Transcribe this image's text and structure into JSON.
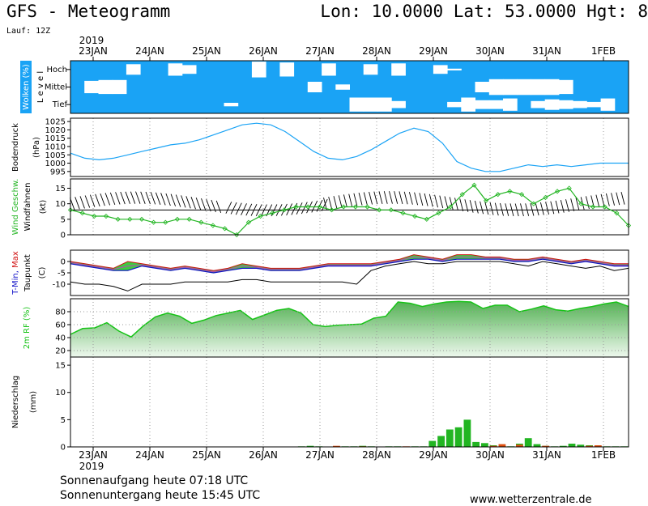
{
  "header": {
    "title": "GFS - Meteogramm",
    "coords": "Lon: 10.0000 Lat: 53.0000 Hgt: 8",
    "run": "Lauf: 12Z"
  },
  "footer": {
    "sunrise": "Sonnenaufgang heute 07:18 UTC",
    "sunset": "Sonnenuntergang heute 15:45 UTC",
    "site": "www.wetterzentrale.de"
  },
  "colors": {
    "cloud": "#1aa3f5",
    "pressure": "#1aa3f5",
    "wind": "#22b522",
    "tmin": "#1010c8",
    "tmax": "#d01010",
    "rh": "#17c317",
    "precip": "#22b522",
    "precip_alt": "#e05010",
    "axis": "#000000",
    "grid": "#888888"
  },
  "dates": {
    "year_label": "2019",
    "labels": [
      "23JAN",
      "24JAN",
      "25JAN",
      "26JAN",
      "27JAN",
      "28JAN",
      "29JAN",
      "30JAN",
      "31JAN",
      "1FEB"
    ],
    "start": "2019-01-23",
    "step_hours": 6
  },
  "chart_data": [
    {
      "type": "heatmap",
      "name": "clouds",
      "ylabel": "Wolken (%)",
      "ylabel2": "L e v e l",
      "levels": [
        "Hoch",
        "Mittel",
        "Tief"
      ],
      "coverage": {
        "Hoch": [
          1,
          1,
          1,
          1,
          0.4,
          1,
          1,
          0.3,
          0.5,
          1,
          1,
          1,
          1,
          0.1,
          1,
          0.2,
          1,
          1,
          0.3,
          1,
          1,
          0.4,
          1,
          0.3,
          1,
          1,
          0.5,
          0.9,
          1,
          1,
          1,
          1,
          1,
          1,
          1,
          1,
          1,
          1,
          1,
          1
        ],
        "Mittel": [
          1,
          0.3,
          0.2,
          0.2,
          1,
          1,
          1,
          1,
          1,
          1,
          1,
          1,
          1,
          1,
          1,
          1,
          1,
          0.4,
          1,
          0.7,
          1,
          1,
          1,
          1,
          1,
          1,
          1,
          1,
          1,
          0.4,
          0.1,
          0.1,
          0.1,
          0.1,
          0.1,
          0.2,
          1,
          1,
          1,
          1
        ],
        "Tief": [
          1,
          1,
          1,
          1,
          1,
          1,
          1,
          1,
          1,
          1,
          1,
          0.8,
          1,
          1,
          1,
          1,
          1,
          1,
          1,
          1,
          0.2,
          0.2,
          0.2,
          0.6,
          1,
          1,
          1,
          0.7,
          0.2,
          0.5,
          0.5,
          0.3,
          1,
          0.6,
          0.4,
          0.5,
          0.6,
          0.7,
          0.3,
          1
        ]
      }
    },
    {
      "type": "line",
      "name": "pressure",
      "ylabel": "Bodendruck",
      "ylabel2": "(hPa)",
      "ylim": [
        992,
        1027
      ],
      "yticks": [
        995,
        1000,
        1005,
        1010,
        1015,
        1020,
        1025
      ],
      "values": [
        1006,
        1003,
        1002,
        1003,
        1005,
        1007,
        1009,
        1011,
        1012,
        1014,
        1017,
        1020,
        1023,
        1024,
        1023,
        1019,
        1013,
        1007,
        1003,
        1002,
        1004,
        1008,
        1013,
        1018,
        1021,
        1019,
        1012,
        1001,
        997,
        995,
        995,
        997,
        999,
        998,
        999,
        998,
        999,
        1000,
        1000,
        1000
      ]
    },
    {
      "type": "line",
      "name": "wind",
      "ylabel": "Wind Geschw.",
      "ylabel2": "Windfahnen",
      "ylabel3": "(kt)",
      "ylim": [
        0,
        18
      ],
      "yticks": [
        0,
        5,
        10,
        15
      ],
      "values": [
        8,
        7,
        6,
        6,
        5,
        5,
        5,
        4,
        4,
        5,
        5,
        4,
        3,
        2,
        0,
        4,
        6,
        7,
        8,
        9,
        9,
        9,
        8,
        9,
        9,
        9,
        8,
        8,
        7,
        6,
        5,
        7,
        9,
        13,
        16,
        11,
        13,
        14,
        13,
        10,
        12,
        14,
        15,
        10,
        9,
        9,
        7,
        3
      ]
    },
    {
      "type": "line",
      "name": "temperature",
      "ylabel": "T-Min, Max",
      "ylabel2": "Taupunkt",
      "ylabel3": "(C)",
      "ylim": [
        -15,
        5
      ],
      "yticks": [
        -10,
        -5,
        0
      ],
      "series": [
        {
          "name": "T-Min",
          "values": [
            -1,
            -2,
            -3,
            -4,
            -4,
            -2,
            -3,
            -4,
            -3,
            -4,
            -5,
            -4,
            -3,
            -3,
            -4,
            -4,
            -4,
            -3,
            -2,
            -2,
            -2,
            -2,
            -1,
            0,
            1,
            1,
            0,
            1,
            1,
            1,
            1,
            0,
            0,
            1,
            0,
            -1,
            0,
            -1,
            -2,
            -2
          ]
        },
        {
          "name": "T-Max",
          "values": [
            0,
            -1,
            -2,
            -3,
            0,
            -1,
            -2,
            -3,
            -2,
            -3,
            -4,
            -3,
            -1,
            -2,
            -3,
            -3,
            -3,
            -2,
            -1,
            -1,
            -1,
            -1,
            0,
            1,
            3,
            2,
            1,
            3,
            3,
            2,
            2,
            1,
            1,
            2,
            1,
            0,
            1,
            0,
            -1,
            -1
          ]
        },
        {
          "name": "Taupunkt",
          "values": [
            -9,
            -10,
            -10,
            -11,
            -13,
            -10,
            -10,
            -10,
            -9,
            -9,
            -9,
            -9,
            -8,
            -8,
            -9,
            -9,
            -9,
            -9,
            -9,
            -9,
            -10,
            -4,
            -2,
            -1,
            0,
            -1,
            -1,
            0,
            0,
            0,
            0,
            -1,
            -2,
            0,
            -1,
            -2,
            -3,
            -2,
            -4,
            -3
          ]
        }
      ]
    },
    {
      "type": "area",
      "name": "humidity",
      "ylabel": "2m RF (%)",
      "ylim": [
        10,
        100
      ],
      "yticks": [
        20,
        40,
        60,
        80
      ],
      "values": [
        45,
        54,
        55,
        63,
        50,
        41,
        58,
        72,
        78,
        73,
        62,
        67,
        74,
        78,
        82,
        68,
        75,
        82,
        85,
        78,
        60,
        57,
        59,
        60,
        61,
        70,
        73,
        95,
        93,
        88,
        92,
        95,
        96,
        95,
        85,
        90,
        90,
        80,
        84,
        89,
        83,
        81,
        85,
        88,
        92,
        95,
        88
      ]
    },
    {
      "type": "bar",
      "name": "precipitation",
      "ylabel": "Niederschlag",
      "ylabel2": "(mm)",
      "ylim": [
        0,
        16.5
      ],
      "yticks": [
        0,
        5,
        10,
        15
      ],
      "values": [
        0,
        0,
        0,
        0,
        0,
        0,
        0,
        0,
        0,
        0,
        0,
        0,
        0,
        0,
        0,
        0,
        0,
        0,
        0,
        0,
        0,
        0,
        0,
        0,
        0,
        0,
        0.1,
        0.2,
        0.1,
        0,
        0.1,
        0.1,
        0.1,
        0.2,
        0.1,
        0,
        0.1,
        0.1,
        0,
        0.1,
        0.1,
        1.1,
        2,
        3.2,
        3.6,
        5,
        0.9,
        0.7,
        0.3,
        0.2,
        0.1,
        0.6,
        1.6,
        0.5,
        0.2,
        0.1,
        0.2,
        0.6,
        0.4,
        0.3,
        0.2,
        0.1,
        0.1,
        0.1
      ],
      "alt_values": [
        0,
        0,
        0,
        0,
        0,
        0,
        0,
        0,
        0,
        0,
        0,
        0,
        0,
        0,
        0,
        0,
        0,
        0,
        0,
        0,
        0,
        0,
        0,
        0,
        0,
        0,
        0,
        0,
        0,
        0,
        0.2,
        0,
        0,
        0.1,
        0,
        0,
        0,
        0,
        0.1,
        0,
        0,
        0,
        0,
        0,
        0,
        0,
        0,
        0,
        0.2,
        0.5,
        0,
        0.4,
        0,
        0,
        0.2,
        0,
        0,
        0,
        0,
        0.2,
        0.3,
        0,
        0,
        0
      ]
    }
  ]
}
